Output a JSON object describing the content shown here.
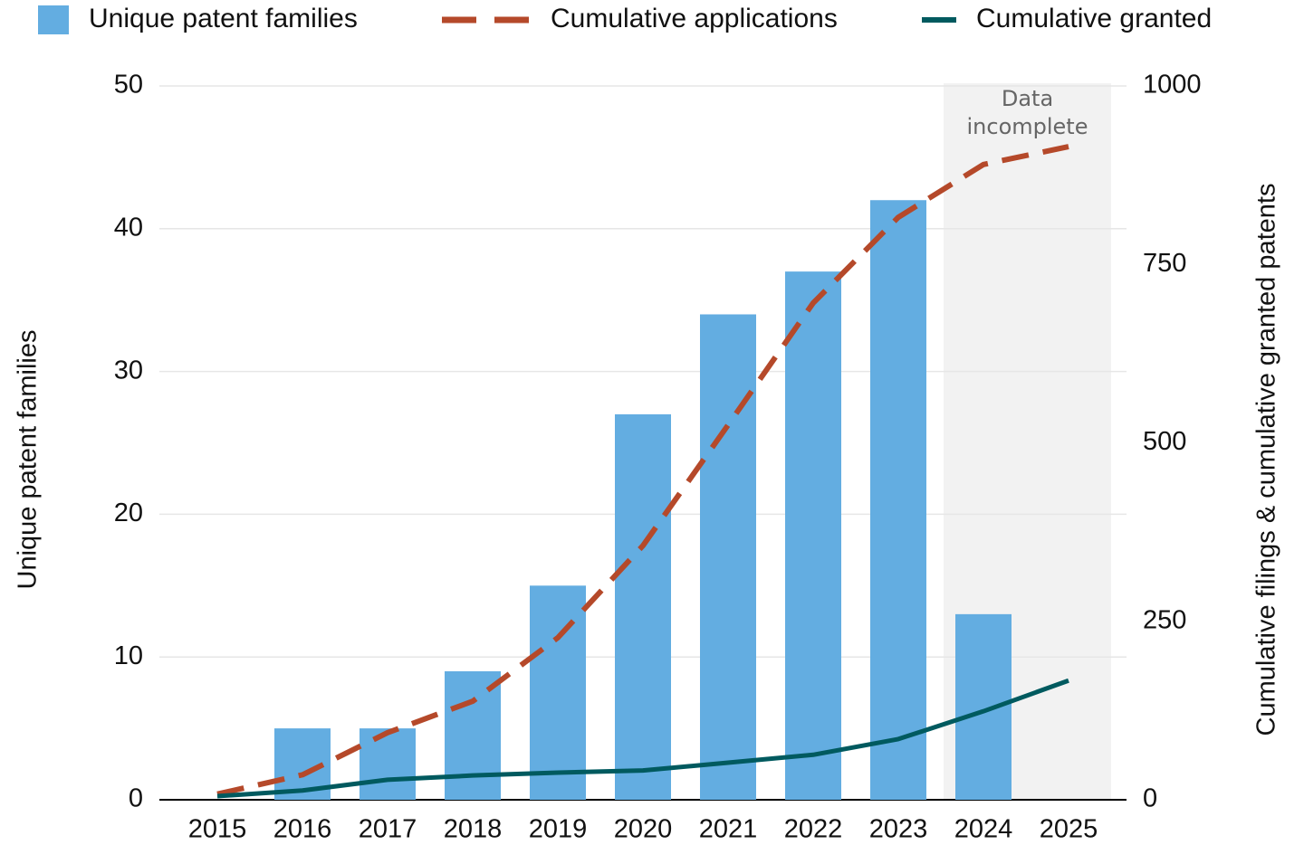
{
  "chart_data": {
    "type": "bar_line",
    "categories": [
      "2015",
      "2016",
      "2017",
      "2018",
      "2019",
      "2020",
      "2021",
      "2022",
      "2023",
      "2024",
      "2025"
    ],
    "series": [
      {
        "name": "Unique patent families",
        "color": "#63ade1",
        "type": "bar",
        "axis": "y",
        "values": [
          0,
          5,
          5,
          9,
          15,
          27,
          34,
          37,
          42,
          13,
          null
        ]
      },
      {
        "name": "Cumulative applications",
        "color": "#b5492a",
        "type": "line",
        "dashed": true,
        "axis": "y2",
        "values": [
          8,
          35,
          94,
          138,
          227,
          356,
          525,
          696,
          816,
          890,
          915
        ]
      },
      {
        "name": "Cumulative granted",
        "color": "#005a5f",
        "type": "line",
        "dashed": false,
        "axis": "y2",
        "values": [
          5,
          13,
          28,
          34,
          38,
          41,
          52,
          63,
          85,
          124,
          167
        ]
      }
    ],
    "ylabel": "Unique patent families",
    "y2label": "Cumulative filings & cumulative granted patents",
    "ylim": [
      0,
      50
    ],
    "yticks": [
      0,
      10,
      20,
      30,
      40,
      50
    ],
    "y2lim": [
      0,
      1000
    ],
    "y2ticks": [
      0,
      250,
      500,
      750,
      1000
    ],
    "grid": true,
    "highlight": {
      "from": "2024",
      "to": "2025",
      "color": "#f2f2f2",
      "label": [
        "Data",
        "incomplete"
      ]
    }
  }
}
